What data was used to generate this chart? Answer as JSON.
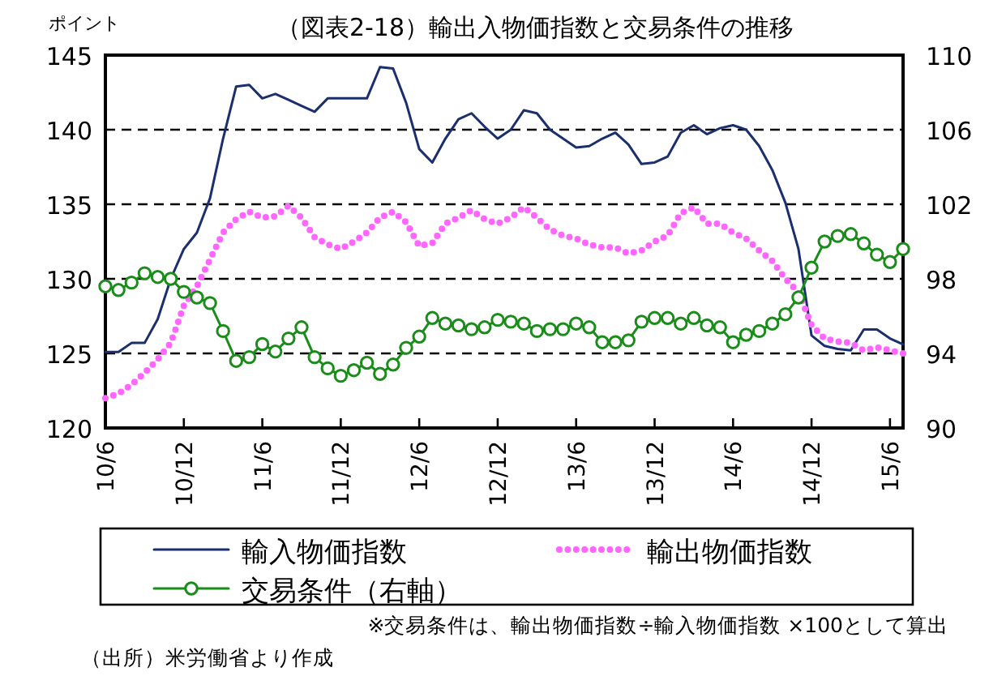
{
  "chart_data": {
    "type": "line",
    "title": "（図表2-18）輸出入物価指数と交易条件の推移",
    "ylabel": "ポイント",
    "x": [
      "2010-06",
      "2010-07",
      "2010-08",
      "2010-09",
      "2010-10",
      "2010-11",
      "2010-12",
      "2011-01",
      "2011-02",
      "2011-03",
      "2011-04",
      "2011-05",
      "2011-06",
      "2011-07",
      "2011-08",
      "2011-09",
      "2011-10",
      "2011-11",
      "2011-12",
      "2012-01",
      "2012-02",
      "2012-03",
      "2012-04",
      "2012-05",
      "2012-06",
      "2012-07",
      "2012-08",
      "2012-09",
      "2012-10",
      "2012-11",
      "2012-12",
      "2013-01",
      "2013-02",
      "2013-03",
      "2013-04",
      "2013-05",
      "2013-06",
      "2013-07",
      "2013-08",
      "2013-09",
      "2013-10",
      "2013-11",
      "2013-12",
      "2014-01",
      "2014-02",
      "2014-03",
      "2014-04",
      "2014-05",
      "2014-06",
      "2014-07",
      "2014-08",
      "2014-09",
      "2014-10",
      "2014-11",
      "2014-12",
      "2015-01",
      "2015-02",
      "2015-03",
      "2015-04",
      "2015-05",
      "2015-06",
      "2015-07"
    ],
    "xlim": [
      "2010-06",
      "2015-07"
    ],
    "xticks": [
      {
        "value": "2010-06",
        "label": "10/6"
      },
      {
        "value": "2010-12",
        "label": "10/12"
      },
      {
        "value": "2011-06",
        "label": "11/6"
      },
      {
        "value": "2011-12",
        "label": "11/12"
      },
      {
        "value": "2012-06",
        "label": "12/6"
      },
      {
        "value": "2012-12",
        "label": "12/12"
      },
      {
        "value": "2013-06",
        "label": "13/6"
      },
      {
        "value": "2013-12",
        "label": "13/12"
      },
      {
        "value": "2014-06",
        "label": "14/6"
      },
      {
        "value": "2014-12",
        "label": "14/12"
      },
      {
        "value": "2015-06",
        "label": "15/6"
      }
    ],
    "ylim": [
      120,
      145
    ],
    "yticks": [
      120,
      125,
      130,
      135,
      140,
      145
    ],
    "y2lim": [
      90,
      110
    ],
    "y2ticks": [
      90,
      94,
      98,
      102,
      106,
      110
    ],
    "grid": "y",
    "legend": "bottom",
    "series": [
      {
        "name": "輸入物価指数",
        "color": "#1b2f6e",
        "line_style": "solid",
        "marker": "none",
        "values": [
          125.1,
          125.1,
          125.7,
          125.7,
          127.3,
          130.0,
          132.0,
          133.1,
          135.4,
          139.4,
          142.9,
          143.0,
          142.1,
          142.4,
          142.0,
          141.6,
          141.2,
          142.1,
          142.1,
          142.1,
          142.1,
          144.2,
          144.1,
          141.8,
          138.7,
          137.8,
          139.4,
          140.7,
          141.1,
          140.2,
          139.4,
          140.0,
          141.3,
          141.1,
          140.0,
          139.4,
          138.8,
          138.9,
          139.4,
          139.8,
          139.0,
          137.7,
          137.8,
          138.2,
          139.8,
          140.3,
          139.7,
          140.1,
          140.3,
          140.0,
          138.9,
          137.3,
          135.1,
          132.0,
          126.2,
          125.5,
          125.3,
          125.2,
          126.6,
          126.6,
          126.0,
          125.6
        ]
      },
      {
        "name": "輸出物価指数",
        "color": "#ff66ff",
        "line_style": "dotted",
        "marker": "none",
        "values": [
          122.0,
          122.3,
          122.9,
          123.7,
          124.6,
          125.7,
          128.2,
          129.5,
          131.3,
          133.1,
          134.0,
          134.5,
          134.1,
          134.2,
          134.9,
          134.1,
          132.8,
          132.3,
          132.0,
          132.5,
          133.1,
          134.1,
          134.5,
          133.8,
          132.2,
          132.4,
          133.7,
          134.1,
          134.6,
          134.0,
          133.7,
          134.1,
          134.8,
          134.1,
          133.3,
          132.9,
          132.7,
          132.3,
          132.1,
          132.1,
          131.7,
          131.9,
          132.5,
          132.9,
          134.4,
          134.8,
          133.7,
          133.7,
          133.1,
          132.7,
          131.9,
          131.2,
          130.0,
          129.1,
          126.9,
          126.0,
          125.8,
          125.7,
          125.2,
          125.4,
          125.2,
          125.0
        ]
      },
      {
        "name": "交易条件（右軸）",
        "color": "#1a8c1a",
        "line_style": "solid",
        "marker": "circle",
        "axis": "y2",
        "values": [
          97.6,
          97.4,
          97.8,
          98.3,
          98.1,
          98.0,
          97.3,
          97.0,
          96.7,
          95.2,
          93.6,
          93.8,
          94.5,
          94.1,
          94.8,
          95.4,
          93.8,
          93.2,
          92.8,
          93.1,
          93.5,
          92.9,
          93.4,
          94.3,
          94.9,
          95.9,
          95.6,
          95.5,
          95.3,
          95.4,
          95.8,
          95.7,
          95.6,
          95.2,
          95.3,
          95.3,
          95.6,
          95.4,
          94.6,
          94.6,
          94.7,
          95.7,
          95.9,
          95.9,
          95.6,
          95.9,
          95.5,
          95.4,
          94.6,
          95.0,
          95.2,
          95.6,
          96.1,
          97.0,
          98.6,
          100.0,
          100.3,
          100.4,
          99.9,
          99.3,
          98.9,
          99.6
        ]
      }
    ],
    "annotations": [
      "※交易条件は、輸出物価指数÷輸入物価指数 ×100として算出",
      "（出所）米労働省より作成"
    ]
  }
}
